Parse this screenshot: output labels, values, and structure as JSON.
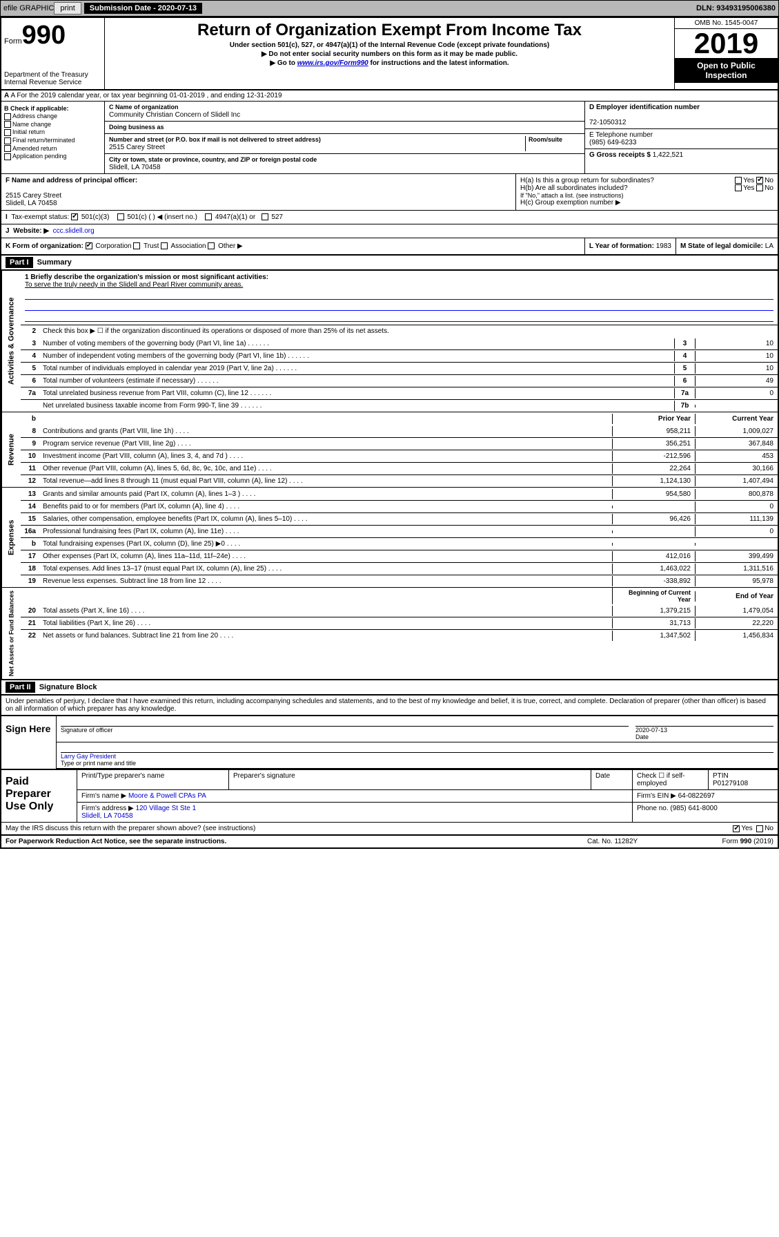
{
  "topbar": {
    "efile": "efile GRAPHIC",
    "print": "print",
    "sub_label": "Submission Date - 2020-07-13",
    "dln": "DLN: 93493195006380"
  },
  "header": {
    "form_word": "Form",
    "form_num": "990",
    "dept": "Department of the Treasury\nInternal Revenue Service",
    "title": "Return of Organization Exempt From Income Tax",
    "subtitle": "Under section 501(c), 527, or 4947(a)(1) of the Internal Revenue Code (except private foundations)",
    "note1": "▶ Do not enter social security numbers on this form as it may be made public.",
    "note2_pre": "▶ Go to ",
    "note2_link": "www.irs.gov/Form990",
    "note2_post": " for instructions and the latest information.",
    "omb": "OMB No. 1545-0047",
    "year": "2019",
    "open": "Open to Public Inspection"
  },
  "row_a": "A For the 2019 calendar year, or tax year beginning 01-01-2019    , and ending 12-31-2019",
  "checkB": {
    "label": "B Check if applicable:",
    "items": [
      "Address change",
      "Name change",
      "Initial return",
      "Final return/terminated",
      "Amended return",
      "Application pending"
    ]
  },
  "org": {
    "name_label": "C Name of organization",
    "name": "Community Christian Concern of Slidell Inc",
    "dba_label": "Doing business as",
    "addr_label": "Number and street (or P.O. box if mail is not delivered to street address)",
    "addr": "2515 Carey Street",
    "room_label": "Room/suite",
    "city_label": "City or town, state or province, country, and ZIP or foreign postal code",
    "city": "Slidell, LA  70458"
  },
  "right": {
    "d_label": "D Employer identification number",
    "d_val": "72-1050312",
    "e_label": "E Telephone number",
    "e_val": "(985) 649-6233",
    "g_label": "G Gross receipts $",
    "g_val": "1,422,521"
  },
  "f": {
    "label": "F Name and address of principal officer:",
    "addr": "2515 Carey Street\nSlidell, LA  70458"
  },
  "h": {
    "a": "H(a)  Is this a group return for subordinates?",
    "b": "H(b)  Are all subordinates included?",
    "note": "If \"No,\" attach a list. (see instructions)",
    "c": "H(c)  Group exemption number ▶",
    "yes": "Yes",
    "no": "No"
  },
  "i": {
    "label": "Tax-exempt status:",
    "opts": [
      "501(c)(3)",
      "501(c) (  ) ◀ (insert no.)",
      "4947(a)(1) or",
      "527"
    ]
  },
  "j": {
    "label": "Website: ▶",
    "val": "ccc.slidell.org"
  },
  "k": {
    "label": "K Form of organization:",
    "opts": [
      "Corporation",
      "Trust",
      "Association",
      "Other ▶"
    ]
  },
  "l": {
    "label": "L Year of formation:",
    "val": "1983"
  },
  "m": {
    "label": "M State of legal domicile:",
    "val": "LA"
  },
  "part1": {
    "hdr": "Part I",
    "title": "Summary",
    "mission_label": "1 Briefly describe the organization's mission or most significant activities:",
    "mission": "To serve the truly needy in the Slidell and Pearl River community areas.",
    "line2": "Check this box ▶ ☐  if the organization discontinued its operations or disposed of more than 25% of its net assets.",
    "vlabels": {
      "ag": "Activities & Governance",
      "rev": "Revenue",
      "exp": "Expenses",
      "na": "Net Assets or Fund Balances"
    },
    "gov_lines": [
      {
        "n": "3",
        "d": "Number of voting members of the governing body (Part VI, line 1a)",
        "box": "3",
        "v": "10"
      },
      {
        "n": "4",
        "d": "Number of independent voting members of the governing body (Part VI, line 1b)",
        "box": "4",
        "v": "10"
      },
      {
        "n": "5",
        "d": "Total number of individuals employed in calendar year 2019 (Part V, line 2a)",
        "box": "5",
        "v": "10"
      },
      {
        "n": "6",
        "d": "Total number of volunteers (estimate if necessary)",
        "box": "6",
        "v": "49"
      },
      {
        "n": "7a",
        "d": "Total unrelated business revenue from Part VIII, column (C), line 12",
        "box": "7a",
        "v": "0"
      },
      {
        "n": "",
        "d": "Net unrelated business taxable income from Form 990-T, line 39",
        "box": "7b",
        "v": ""
      }
    ],
    "col_hdrs": {
      "b": "b",
      "prior": "Prior Year",
      "current": "Current Year"
    },
    "rev_lines": [
      {
        "n": "8",
        "d": "Contributions and grants (Part VIII, line 1h)",
        "p": "958,211",
        "c": "1,009,027"
      },
      {
        "n": "9",
        "d": "Program service revenue (Part VIII, line 2g)",
        "p": "356,251",
        "c": "367,848"
      },
      {
        "n": "10",
        "d": "Investment income (Part VIII, column (A), lines 3, 4, and 7d )",
        "p": "-212,596",
        "c": "453"
      },
      {
        "n": "11",
        "d": "Other revenue (Part VIII, column (A), lines 5, 6d, 8c, 9c, 10c, and 11e)",
        "p": "22,264",
        "c": "30,166"
      },
      {
        "n": "12",
        "d": "Total revenue—add lines 8 through 11 (must equal Part VIII, column (A), line 12)",
        "p": "1,124,130",
        "c": "1,407,494"
      }
    ],
    "exp_lines": [
      {
        "n": "13",
        "d": "Grants and similar amounts paid (Part IX, column (A), lines 1–3 )",
        "p": "954,580",
        "c": "800,878"
      },
      {
        "n": "14",
        "d": "Benefits paid to or for members (Part IX, column (A), line 4)",
        "p": "",
        "c": "0"
      },
      {
        "n": "15",
        "d": "Salaries, other compensation, employee benefits (Part IX, column (A), lines 5–10)",
        "p": "96,426",
        "c": "111,139"
      },
      {
        "n": "16a",
        "d": "Professional fundraising fees (Part IX, column (A), line 11e)",
        "p": "",
        "c": "0"
      },
      {
        "n": "b",
        "d": "Total fundraising expenses (Part IX, column (D), line 25) ▶0",
        "p": "",
        "c": ""
      },
      {
        "n": "17",
        "d": "Other expenses (Part IX, column (A), lines 11a–11d, 11f–24e)",
        "p": "412,016",
        "c": "399,499"
      },
      {
        "n": "18",
        "d": "Total expenses. Add lines 13–17 (must equal Part IX, column (A), line 25)",
        "p": "1,463,022",
        "c": "1,311,516"
      },
      {
        "n": "19",
        "d": "Revenue less expenses. Subtract line 18 from line 12",
        "p": "-338,892",
        "c": "95,978"
      }
    ],
    "na_hdrs": {
      "begin": "Beginning of Current Year",
      "end": "End of Year"
    },
    "na_lines": [
      {
        "n": "20",
        "d": "Total assets (Part X, line 16)",
        "p": "1,379,215",
        "c": "1,479,054"
      },
      {
        "n": "21",
        "d": "Total liabilities (Part X, line 26)",
        "p": "31,713",
        "c": "22,220"
      },
      {
        "n": "22",
        "d": "Net assets or fund balances. Subtract line 21 from line 20",
        "p": "1,347,502",
        "c": "1,456,834"
      }
    ]
  },
  "part2": {
    "hdr": "Part II",
    "title": "Signature Block",
    "perjury": "Under penalties of perjury, I declare that I have examined this return, including accompanying schedules and statements, and to the best of my knowledge and belief, it is true, correct, and complete. Declaration of preparer (other than officer) is based on all information of which preparer has any knowledge.",
    "sign_here": "Sign Here",
    "sig_officer": "Signature of officer",
    "date": "Date",
    "date_val": "2020-07-13",
    "name_title": "Larry Gay  President",
    "name_label": "Type or print name and title",
    "paid": "Paid Preparer Use Only",
    "prep_name_label": "Print/Type preparer's name",
    "prep_sig_label": "Preparer's signature",
    "prep_date_label": "Date",
    "self_emp": "Check ☐ if self-employed",
    "ptin_label": "PTIN",
    "ptin": "P01279108",
    "firm_name_label": "Firm's name    ▶",
    "firm_name": "Moore & Powell CPAs PA",
    "firm_ein_label": "Firm's EIN ▶",
    "firm_ein": "64-0822697",
    "firm_addr_label": "Firm's address ▶",
    "firm_addr": "120 Village St Ste 1\nSlidell, LA  70458",
    "phone_label": "Phone no.",
    "phone": "(985) 641-8000",
    "discuss": "May the IRS discuss this return with the preparer shown above? (see instructions)",
    "yes": "Yes",
    "no": "No"
  },
  "footer": {
    "pra": "For Paperwork Reduction Act Notice, see the separate instructions.",
    "cat": "Cat. No. 11282Y",
    "form": "Form 990 (2019)"
  }
}
